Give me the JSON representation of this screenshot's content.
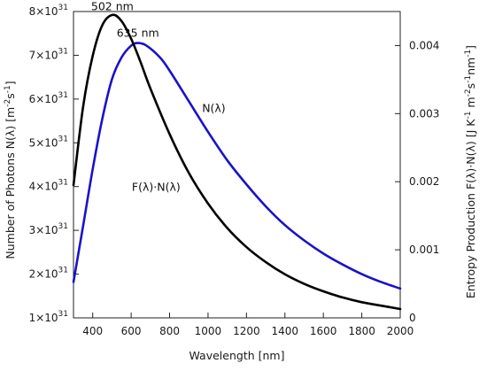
{
  "chart_data": {
    "type": "line",
    "xlabel": "Wavelength [nm]",
    "ylabel_left": {
      "text": "Number of Photons N(λ) [m",
      "exp1": "-2",
      "mid": "s",
      "exp2": "-1",
      "end": "]"
    },
    "ylabel_right": {
      "text": "Entropy Production F(λ)·N(λ) [J K",
      "exp1": "-1",
      "mid1": " m",
      "exp2": "-2",
      "mid2": "s",
      "exp3": "-1",
      "mid3": "nm",
      "exp4": "-1",
      "end": "]"
    },
    "xlim": [
      300,
      2000
    ],
    "ylim_left": [
      1e+31,
      8e+31
    ],
    "ylim_right": [
      0,
      0.0045
    ],
    "x_ticks": [
      400,
      600,
      800,
      1000,
      1200,
      1400,
      1600,
      1800,
      2000
    ],
    "x_tick_labels": [
      "400",
      "600",
      "800",
      "1000",
      "1200",
      "1400",
      "1600",
      "1800",
      "2000"
    ],
    "y_left_ticks": [
      {
        "mantissa": "1×10",
        "exp": "31",
        "value": 1e+31
      },
      {
        "mantissa": "2×10",
        "exp": "31",
        "value": 2e+31
      },
      {
        "mantissa": "3×10",
        "exp": "31",
        "value": 3e+31
      },
      {
        "mantissa": "4×10",
        "exp": "31",
        "value": 4e+31
      },
      {
        "mantissa": "5×10",
        "exp": "31",
        "value": 5e+31
      },
      {
        "mantissa": "6×10",
        "exp": "31",
        "value": 6e+31
      },
      {
        "mantissa": "7×10",
        "exp": "31",
        "value": 7e+31
      },
      {
        "mantissa": "8×10",
        "exp": "31",
        "value": 8e+31
      }
    ],
    "y_right_ticks": [
      {
        "label": "0",
        "value": 0
      },
      {
        "label": "0.001",
        "value": 0.001
      },
      {
        "label": "0.002",
        "value": 0.002
      },
      {
        "label": "0.003",
        "value": 0.003
      },
      {
        "label": "0.004",
        "value": 0.004
      }
    ],
    "series": [
      {
        "name": "N(λ)",
        "axis": "left",
        "color": "#1a12c8",
        "x": [
          300,
          350,
          400,
          450,
          500,
          550,
          600,
          635,
          680,
          750,
          800,
          900,
          1000,
          1100,
          1200,
          1300,
          1400,
          1500,
          1600,
          1700,
          1800,
          1900,
          2000
        ],
        "y": [
          1.82e+31,
          3.1e+31,
          4.4e+31,
          5.55e+31,
          6.45e+31,
          6.95e+31,
          7.22e+31,
          7.28e+31,
          7.22e+31,
          6.95e+31,
          6.65e+31,
          5.95e+31,
          5.25e+31,
          4.6e+31,
          4.05e+31,
          3.55e+31,
          3.12e+31,
          2.77e+31,
          2.47e+31,
          2.22e+31,
          2e+31,
          1.82e+31,
          1.67e+31
        ]
      },
      {
        "name": "F(λ)·N(λ)",
        "axis": "right",
        "color": "#000000",
        "x": [
          300,
          350,
          400,
          450,
          502,
          550,
          600,
          650,
          700,
          800,
          900,
          1000,
          1100,
          1200,
          1300,
          1400,
          1500,
          1600,
          1700,
          1800,
          1900,
          2000
        ],
        "y": [
          0.00195,
          0.0031,
          0.00385,
          0.0043,
          0.00445,
          0.00436,
          0.0041,
          0.00375,
          0.00337,
          0.0027,
          0.00213,
          0.00168,
          0.00132,
          0.00104,
          0.00082,
          0.00064,
          0.0005,
          0.00039,
          0.0003,
          0.00023,
          0.00018,
          0.00013
        ]
      }
    ],
    "annotations": [
      {
        "text": "502 nm",
        "x": 502,
        "axis": "right",
        "y": 0.00452
      },
      {
        "text": "635 nm",
        "x": 635,
        "axis": "left",
        "y": 7.42e+31
      },
      {
        "text": "N(λ)",
        "x": 1030,
        "axis": "left",
        "y": 5.7e+31
      },
      {
        "text": "F(λ)·N(λ)",
        "x": 730,
        "axis": "left",
        "y": 3.9e+31
      }
    ],
    "grid": false,
    "legend": "none"
  }
}
